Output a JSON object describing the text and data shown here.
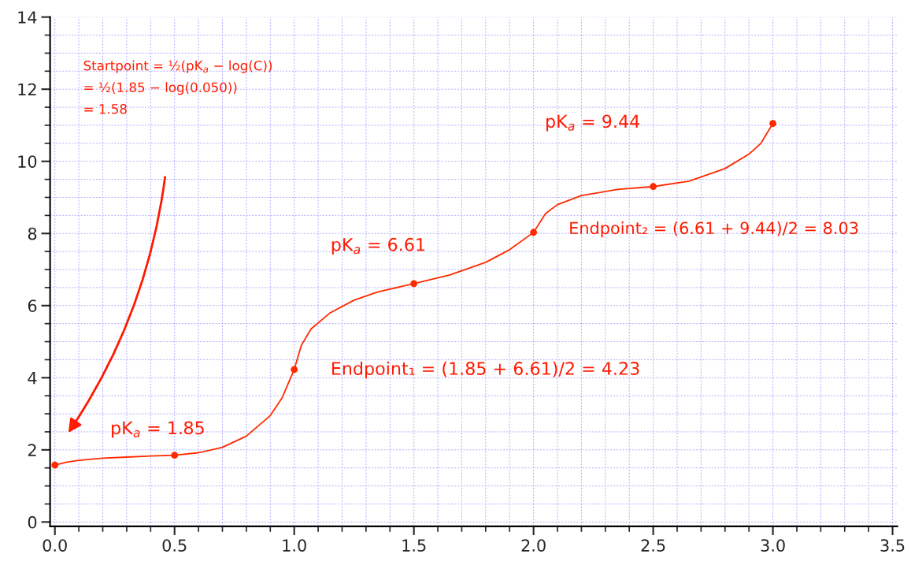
{
  "chart_data": {
    "type": "line",
    "xlim": [
      -0.02,
      3.52
    ],
    "ylim": [
      -0.12,
      14
    ],
    "xticks": [
      {
        "value": 0,
        "label": "0.0"
      },
      {
        "value": 0.5,
        "label": "0.5"
      },
      {
        "value": 1,
        "label": "1.0"
      },
      {
        "value": 1.5,
        "label": "1.5"
      },
      {
        "value": 2,
        "label": "2.0"
      },
      {
        "value": 2.5,
        "label": "2.5"
      },
      {
        "value": 3,
        "label": "3.0"
      },
      {
        "value": 3.5,
        "label": "3.5"
      }
    ],
    "yticks": [
      0,
      2,
      4,
      6,
      8,
      10,
      12,
      14
    ],
    "grid": true,
    "series": [
      {
        "color": "#ff2a00",
        "marker": "none",
        "x": [
          0,
          0.05,
          0.1,
          0.2,
          0.3,
          0.4,
          0.5,
          0.6,
          0.7,
          0.8,
          0.9,
          0.95,
          1.0,
          1.03,
          1.07,
          1.15,
          1.25,
          1.35,
          1.5,
          1.65,
          1.8,
          1.9,
          2.0,
          2.05,
          2.1,
          2.2,
          2.35,
          2.5,
          2.65,
          2.8,
          2.9,
          2.95,
          3.0
        ],
        "values": [
          1.58,
          1.66,
          1.71,
          1.77,
          1.8,
          1.83,
          1.85,
          1.92,
          2.07,
          2.38,
          2.95,
          3.45,
          4.23,
          4.9,
          5.35,
          5.8,
          6.15,
          6.38,
          6.61,
          6.85,
          7.2,
          7.55,
          8.03,
          8.55,
          8.8,
          9.05,
          9.22,
          9.3,
          9.45,
          9.8,
          10.2,
          10.5,
          11.05
        ]
      },
      {
        "type": "scatter",
        "color": "#ff2a00",
        "marker": "circle",
        "x": [
          0,
          0.5,
          1.0,
          1.5,
          2.0,
          2.5,
          3.0
        ],
        "values": [
          1.58,
          1.85,
          4.23,
          6.61,
          8.03,
          9.3,
          11.05
        ]
      }
    ],
    "annotations": [
      "Startpoint = ½(pK$_{a}$ − log(C))\n= ½(1.85 − log(0.050))\n= 1.58",
      "pK$_{a}$ = 1.85",
      "Endpoint₁ = (1.85 + 6.61)/2 = 4.23",
      "pK$_{a}$ = 6.61",
      "Endpoint₂ = (6.61 + 9.44)/2 = 8.03",
      "pK$_{a}$ = 9.44"
    ]
  }
}
